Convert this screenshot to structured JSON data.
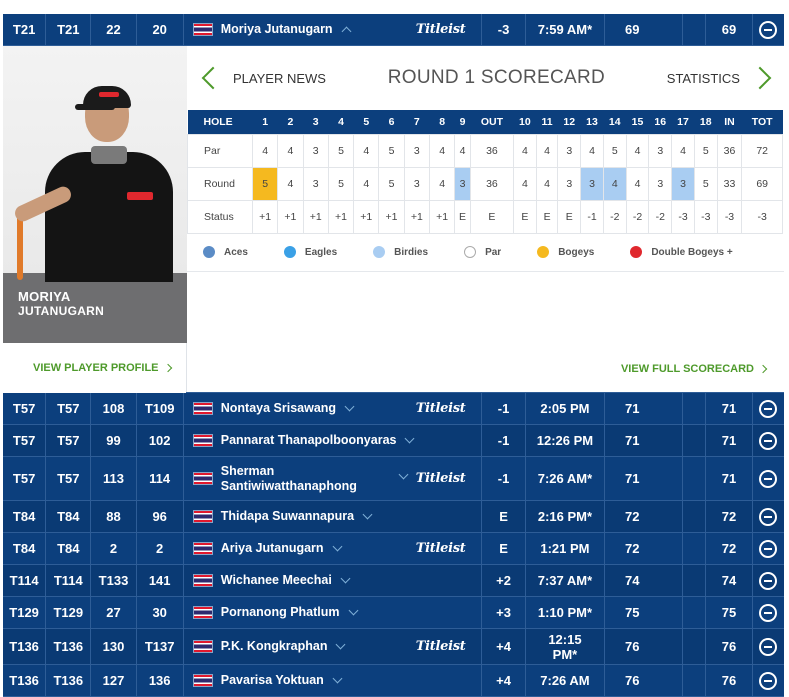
{
  "top_row": {
    "pos": "T21",
    "start_pos": "T21",
    "r1": "22",
    "r2": "20",
    "player": "Moriya Jutanugarn",
    "brand": "Titleist",
    "to_par": "-3",
    "thru": "7:59 AM*",
    "today": "69",
    "total": "69"
  },
  "panel": {
    "player_first": "MORIYA",
    "player_last": "JUTANUGARN",
    "player_news": "PLAYER NEWS",
    "title": "ROUND 1 SCORECARD",
    "statistics": "STATISTICS",
    "view_profile": "VIEW PLAYER PROFILE",
    "view_full": "VIEW FULL SCORECARD",
    "holes_header": [
      "HOLE",
      "1",
      "2",
      "3",
      "4",
      "5",
      "6",
      "7",
      "8",
      "9",
      "OUT",
      "10",
      "11",
      "12",
      "13",
      "14",
      "15",
      "16",
      "17",
      "18",
      "IN",
      "TOT"
    ],
    "par_label": "Par",
    "par": [
      "4",
      "4",
      "3",
      "5",
      "4",
      "5",
      "3",
      "4",
      "4",
      "36",
      "4",
      "4",
      "3",
      "4",
      "5",
      "4",
      "3",
      "4",
      "5",
      "36",
      "72"
    ],
    "round_label": "Round",
    "round": [
      "5",
      "4",
      "3",
      "5",
      "4",
      "5",
      "3",
      "4",
      "3",
      "36",
      "4",
      "4",
      "3",
      "3",
      "4",
      "4",
      "3",
      "3",
      "5",
      "33",
      "69"
    ],
    "round_marks": [
      "bogey",
      "",
      "",
      "",
      "",
      "",
      "",
      "",
      "birdie",
      "",
      "",
      "",
      "",
      "birdie",
      "birdie",
      "",
      "",
      "birdie",
      "",
      "",
      ""
    ],
    "status_label": "Status",
    "status": [
      "+1",
      "+1",
      "+1",
      "+1",
      "+1",
      "+1",
      "+1",
      "+1",
      "E",
      "E",
      "E",
      "E",
      "E",
      "-1",
      "-2",
      "-2",
      "-2",
      "-3",
      "-3",
      "-3",
      "-3"
    ],
    "legend": [
      {
        "label": "Aces",
        "color": "#5b8cc6"
      },
      {
        "label": "Eagles",
        "color": "#3aa0e6"
      },
      {
        "label": "Birdies",
        "color": "#a9cdf2"
      },
      {
        "label": "Par",
        "color": "#ffffff"
      },
      {
        "label": "Bogeys",
        "color": "#f5b91f"
      },
      {
        "label": "Double Bogeys +",
        "color": "#e0282e"
      }
    ]
  },
  "rows": [
    {
      "pos": "T57",
      "start_pos": "T57",
      "r1": "108",
      "r2": "T109",
      "player": "Nontaya Srisawang",
      "player2": "",
      "brand": "Titleist",
      "to_par": "-1",
      "thru": "2:05 PM",
      "thru2": "",
      "today": "71",
      "total": "71"
    },
    {
      "pos": "T57",
      "start_pos": "T57",
      "r1": "99",
      "r2": "102",
      "player": "Pannarat Thanapolboonyaras",
      "player2": "",
      "brand": "",
      "to_par": "-1",
      "thru": "12:26 PM",
      "thru2": "",
      "today": "71",
      "total": "71"
    },
    {
      "pos": "T57",
      "start_pos": "T57",
      "r1": "113",
      "r2": "114",
      "player": "Sherman",
      "player2": "Santiwiwatthanaphong",
      "brand": "Titleist",
      "to_par": "-1",
      "thru": "7:26 AM*",
      "thru2": "",
      "today": "71",
      "total": "71"
    },
    {
      "pos": "T84",
      "start_pos": "T84",
      "r1": "88",
      "r2": "96",
      "player": "Thidapa Suwannapura",
      "player2": "",
      "brand": "",
      "to_par": "E",
      "thru": "2:16 PM*",
      "thru2": "",
      "today": "72",
      "total": "72"
    },
    {
      "pos": "T84",
      "start_pos": "T84",
      "r1": "2",
      "r2": "2",
      "player": "Ariya Jutanugarn",
      "player2": "",
      "brand": "Titleist",
      "to_par": "E",
      "thru": "1:21 PM",
      "thru2": "",
      "today": "72",
      "total": "72"
    },
    {
      "pos": "T114",
      "start_pos": "T114",
      "r1": "T133",
      "r2": "141",
      "player": "Wichanee Meechai",
      "player2": "",
      "brand": "",
      "to_par": "+2",
      "thru": "7:37 AM*",
      "thru2": "",
      "today": "74",
      "total": "74"
    },
    {
      "pos": "T129",
      "start_pos": "T129",
      "r1": "27",
      "r2": "30",
      "player": "Pornanong Phatlum",
      "player2": "",
      "brand": "",
      "to_par": "+3",
      "thru": "1:10 PM*",
      "thru2": "",
      "today": "75",
      "total": "75"
    },
    {
      "pos": "T136",
      "start_pos": "T136",
      "r1": "130",
      "r2": "T137",
      "player": "P.K. Kongkraphan",
      "player2": "",
      "brand": "Titleist",
      "to_par": "+4",
      "thru": "12:15",
      "thru2": "PM*",
      "today": "76",
      "total": "76"
    },
    {
      "pos": "T136",
      "start_pos": "T136",
      "r1": "127",
      "r2": "136",
      "player": "Pavarisa Yoktuan",
      "player2": "",
      "brand": "",
      "to_par": "+4",
      "thru": "7:26 AM",
      "thru2": "",
      "today": "76",
      "total": "76"
    }
  ]
}
